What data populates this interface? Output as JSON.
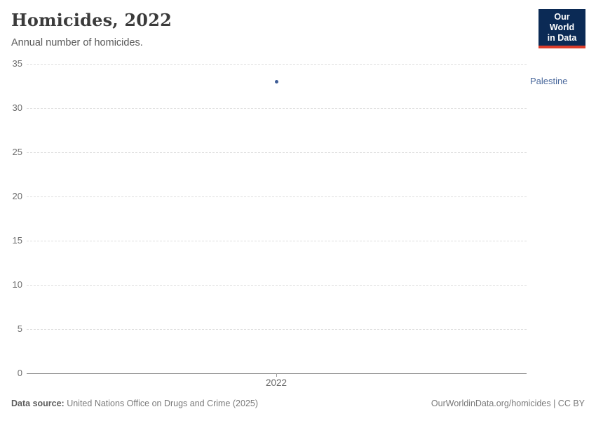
{
  "header": {
    "title": "Homicides, 2022",
    "subtitle": "Annual number of homicides."
  },
  "logo": {
    "line1": "Our World",
    "line2": "in Data",
    "bg_color": "#0b2a55",
    "bar_color": "#dc3d2b"
  },
  "chart_data": {
    "type": "scatter",
    "title": "Homicides, 2022",
    "xlabel": "",
    "ylabel": "Annual number of homicides",
    "x": [
      2022
    ],
    "series": [
      {
        "name": "Palestine",
        "values": [
          33
        ],
        "point_color": "#3e5c96",
        "label_color": "#4c6a9d"
      }
    ],
    "ylim": [
      0,
      35
    ],
    "yticks": [
      0,
      5,
      10,
      15,
      20,
      25,
      30,
      35
    ],
    "xticks": [
      "2022"
    ],
    "grid": true,
    "gridline_style": "dashed",
    "legend_position": "right-of-plot"
  },
  "footer": {
    "source_label": "Data source:",
    "source_text": " United Nations Office on Drugs and Crime (2025)",
    "rights": "OurWorldinData.org/homicides | CC BY"
  },
  "colors": {
    "title": "#3b3b3b",
    "subtitle": "#595959",
    "tick_label": "#6e6e6e",
    "gridline": "#dedede",
    "axis_line": "#8a8a8a"
  }
}
